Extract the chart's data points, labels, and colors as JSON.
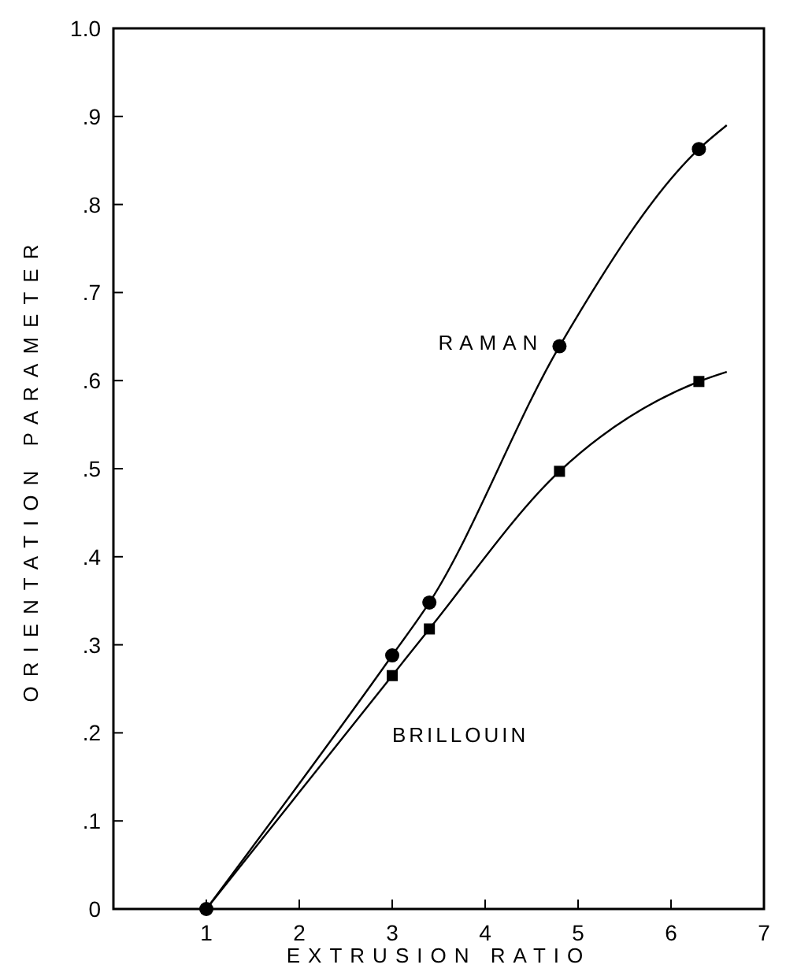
{
  "chart_data": {
    "type": "line",
    "xlabel": "EXTRUSION RATIO",
    "ylabel": "ORIENTATION PARAMETER",
    "xlim": [
      0,
      7
    ],
    "xticks": [
      {
        "value": 0,
        "label": null
      },
      1,
      2,
      3,
      4,
      5,
      6,
      7
    ],
    "ylim": [
      0,
      1
    ],
    "yticks": [
      0,
      {
        "value": 0.1,
        "label": ".1"
      },
      {
        "value": 0.2,
        "label": ".2"
      },
      {
        "value": 0.3,
        "label": ".3"
      },
      {
        "value": 0.4,
        "label": ".4"
      },
      {
        "value": 0.5,
        "label": ".5"
      },
      {
        "value": 0.6,
        "label": ".6"
      },
      {
        "value": 0.7,
        "label": ".7"
      },
      {
        "value": 0.8,
        "label": ".8"
      },
      {
        "value": 0.9,
        "label": ".9"
      },
      {
        "value": 1,
        "label": "1.0"
      }
    ],
    "grid": false,
    "line_style": "solid",
    "series": [
      {
        "name": "RAMAN",
        "color": "#000000",
        "marker": "none",
        "x": [
          1,
          3,
          3.4,
          4.8,
          6.3,
          6.6
        ],
        "values": [
          0,
          0.288,
          0.348,
          0.639,
          0.863,
          0.89
        ]
      },
      {
        "name": "BRILLOUIN",
        "color": "#000000",
        "marker": "none",
        "x": [
          1,
          3,
          3.4,
          4.8,
          6.3,
          6.6
        ],
        "values": [
          0,
          0.265,
          0.318,
          0.497,
          0.599,
          0.61
        ]
      },
      {
        "type": "scatter",
        "color": "#000000",
        "marker": "circle",
        "x": [
          1,
          3,
          3.4,
          4.8,
          6.3
        ],
        "values": [
          0,
          0.288,
          0.348,
          0.639,
          0.863
        ]
      },
      {
        "type": "scatter",
        "color": "#000000",
        "marker": "square",
        "x": [
          3,
          3.4,
          4.8,
          6.3
        ],
        "values": [
          0.265,
          0.318,
          0.497,
          0.599
        ]
      }
    ]
  }
}
